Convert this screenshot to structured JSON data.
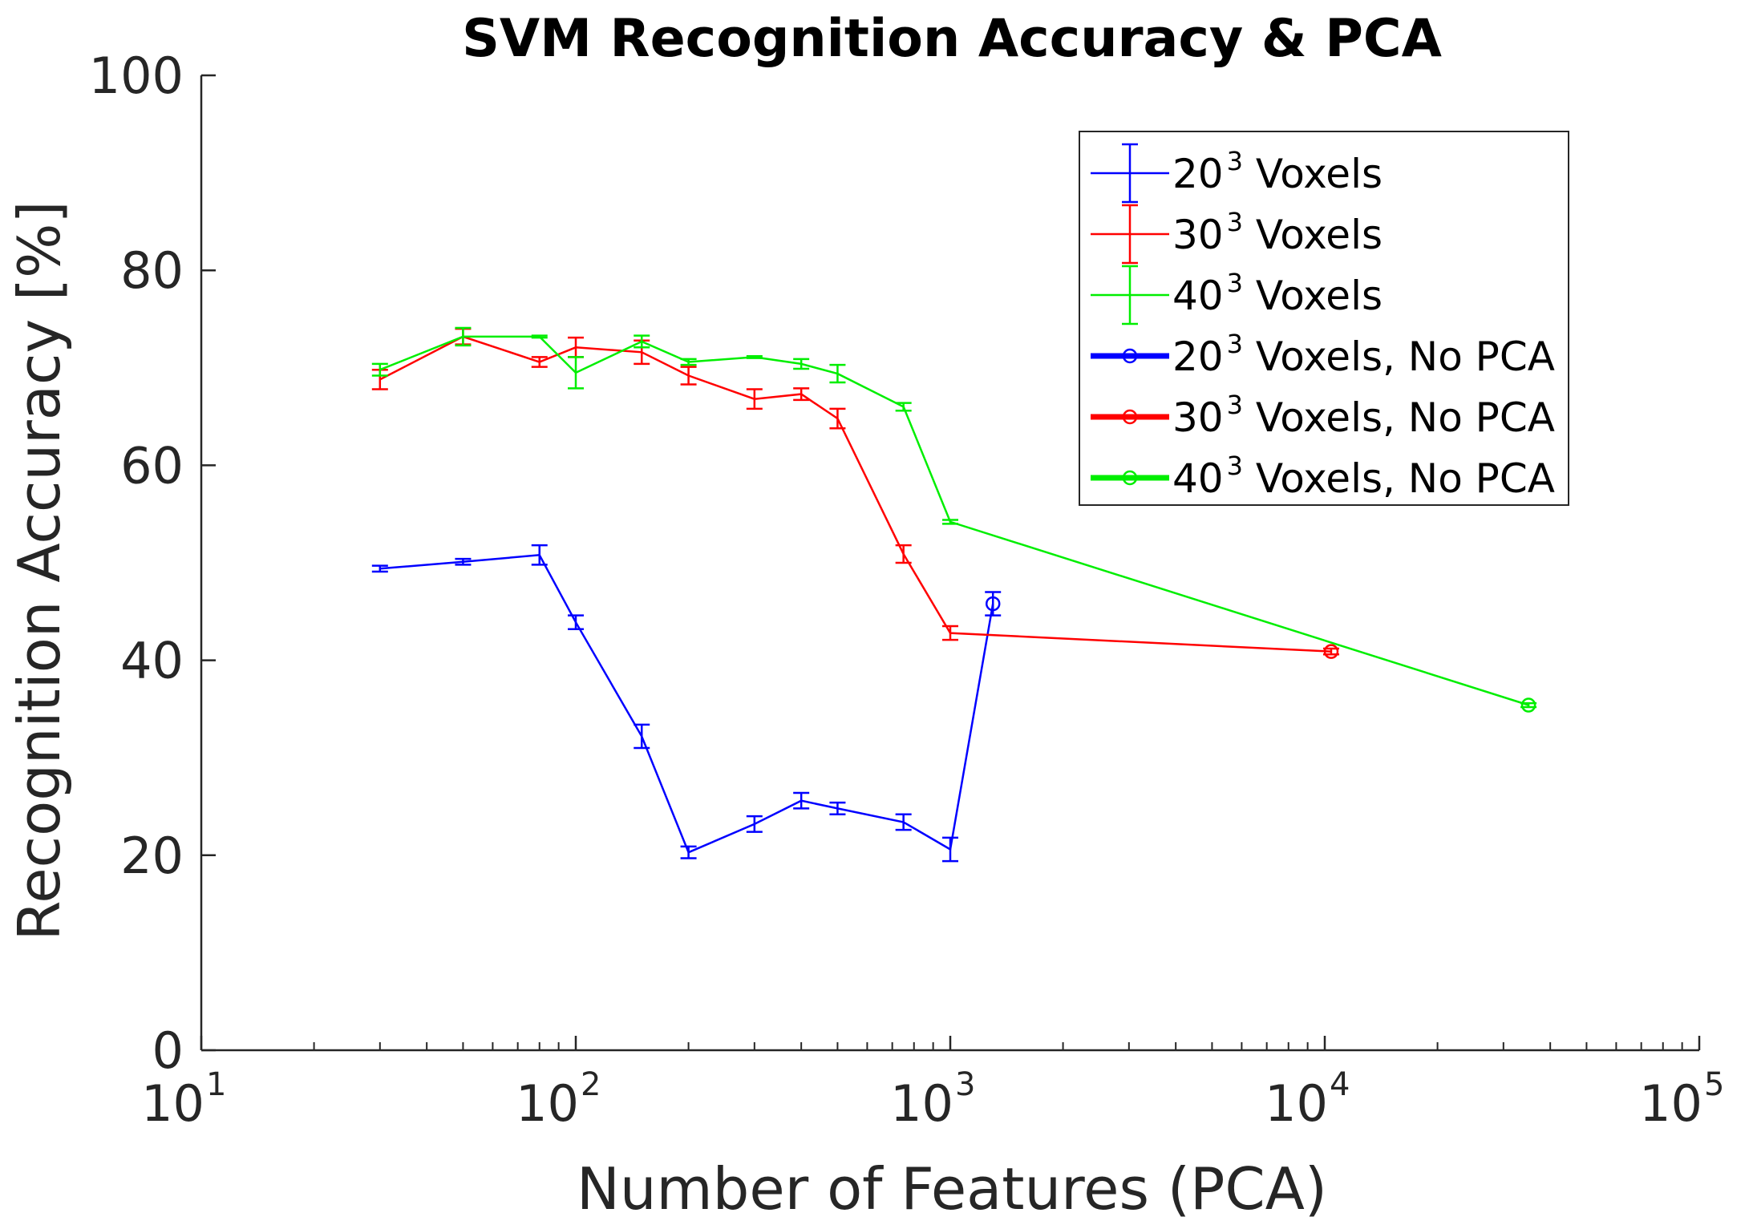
{
  "chart_data": {
    "type": "line",
    "title": "SVM Recognition Accuracy & PCA",
    "xlabel": "Number of Features (PCA)",
    "ylabel": "Recognition Accuracy [%]",
    "xscale": "log",
    "xlim": [
      10,
      100000
    ],
    "ylim": [
      0,
      100
    ],
    "yticks": [
      0,
      20,
      40,
      60,
      80,
      100
    ],
    "xticks": [
      {
        "base": "10",
        "exp": "1",
        "value": 10
      },
      {
        "base": "10",
        "exp": "2",
        "value": 100
      },
      {
        "base": "10",
        "exp": "3",
        "value": 1000
      },
      {
        "base": "10",
        "exp": "4",
        "value": 10000
      },
      {
        "base": "10",
        "exp": "5",
        "value": 100000
      }
    ],
    "legend_position": "top-right",
    "series": [
      {
        "name": "20³ Voxels",
        "label_base": "20",
        "label_sup": "3",
        "label_rest": " Voxels",
        "color": "#0000ff",
        "kind": "errorbar",
        "x": [
          30,
          50,
          80,
          100,
          150,
          200,
          300,
          400,
          500,
          750,
          1000,
          1300
        ],
        "y": [
          49.4,
          50.1,
          50.8,
          43.9,
          32.2,
          20.3,
          23.2,
          25.6,
          24.8,
          23.4,
          20.6,
          45.8
        ],
        "err": [
          0.3,
          0.3,
          1.0,
          0.7,
          1.2,
          0.6,
          0.8,
          0.8,
          0.6,
          0.8,
          1.2,
          1.2
        ]
      },
      {
        "name": "30³ Voxels",
        "label_base": "30",
        "label_sup": "3",
        "label_rest": " Voxels",
        "color": "#ff0000",
        "kind": "errorbar",
        "x": [
          30,
          50,
          80,
          100,
          150,
          200,
          300,
          400,
          500,
          750,
          1000,
          10400
        ],
        "y": [
          68.8,
          73.2,
          70.6,
          72.1,
          71.6,
          69.2,
          66.8,
          67.3,
          64.8,
          50.9,
          42.8,
          40.9
        ],
        "err": [
          1.0,
          0.8,
          0.5,
          1.0,
          1.2,
          0.9,
          1.0,
          0.6,
          1.0,
          0.9,
          0.7,
          0.3
        ]
      },
      {
        "name": "40³ Voxels",
        "label_base": "40",
        "label_sup": "3",
        "label_rest": " Voxels",
        "color": "#00ee00",
        "kind": "errorbar",
        "x": [
          30,
          50,
          80,
          100,
          150,
          200,
          300,
          400,
          500,
          750,
          1000,
          35000
        ],
        "y": [
          69.8,
          73.2,
          73.2,
          69.5,
          72.7,
          70.6,
          71.1,
          70.4,
          69.4,
          66.0,
          54.2,
          35.4
        ],
        "err": [
          0.6,
          0.9,
          0.1,
          1.6,
          0.6,
          0.3,
          0.1,
          0.5,
          0.9,
          0.4,
          0.2,
          0.2
        ]
      },
      {
        "name": "20³ Voxels, No PCA",
        "label_base": "20",
        "label_sup": "3",
        "label_rest": " Voxels, No PCA",
        "color": "#0000ff",
        "kind": "point",
        "x": [
          1300
        ],
        "y": [
          45.8
        ]
      },
      {
        "name": "30³ Voxels, No PCA",
        "label_base": "30",
        "label_sup": "3",
        "label_rest": " Voxels, No PCA",
        "color": "#ff0000",
        "kind": "point",
        "x": [
          10400
        ],
        "y": [
          40.9
        ]
      },
      {
        "name": "40³ Voxels, No PCA",
        "label_base": "40",
        "label_sup": "3",
        "label_rest": " Voxels, No PCA",
        "color": "#00ee00",
        "kind": "point",
        "x": [
          35000
        ],
        "y": [
          35.4
        ]
      }
    ]
  }
}
